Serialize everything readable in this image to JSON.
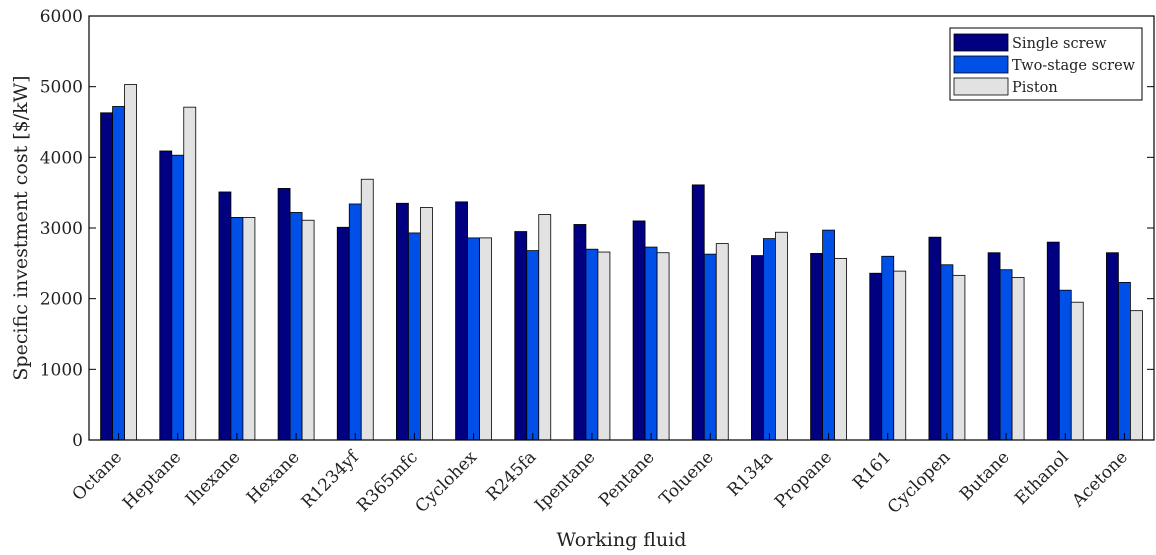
{
  "chart_data": {
    "type": "bar",
    "xlabel": "Working fluid",
    "ylabel": "Specific investment cost [$/kW]",
    "ylim": [
      0,
      6000
    ],
    "yticks": [
      0,
      1000,
      2000,
      3000,
      4000,
      5000,
      6000
    ],
    "grid": false,
    "legend_position": "top-right",
    "categories": [
      "Octane",
      "Heptane",
      "Ihexane",
      "Hexane",
      "R1234yf",
      "R365mfc",
      "Cyclohex",
      "R245fa",
      "Ipentane",
      "Pentane",
      "Toluene",
      "R134a",
      "Propane",
      "R161",
      "Cyclopen",
      "Butane",
      "Ethanol",
      "Acetone"
    ],
    "series": [
      {
        "name": "Single screw",
        "color": "#000080",
        "values": [
          4630,
          4090,
          3510,
          3560,
          3010,
          3350,
          3370,
          2950,
          3050,
          3100,
          3610,
          2610,
          2640,
          2360,
          2870,
          2650,
          2800,
          2650
        ]
      },
      {
        "name": "Two-stage screw",
        "color": "#0050e8",
        "values": [
          4720,
          4030,
          3150,
          3220,
          3340,
          2930,
          2860,
          2680,
          2700,
          2730,
          2630,
          2850,
          2970,
          2600,
          2480,
          2410,
          2120,
          2230
        ]
      },
      {
        "name": "Piston",
        "color": "#e2e2e2",
        "values": [
          5030,
          4710,
          3150,
          3110,
          3690,
          3290,
          2860,
          3190,
          2660,
          2650,
          2780,
          2940,
          2570,
          2390,
          2330,
          2300,
          1950,
          1830
        ]
      }
    ]
  }
}
